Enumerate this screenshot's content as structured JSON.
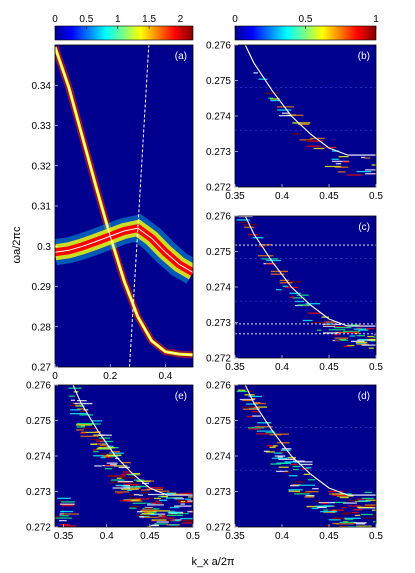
{
  "figure": {
    "ylabel": "ωa/2πc",
    "xlabel": "k_x a/2π"
  },
  "colorbars": [
    {
      "ticks": [
        "0",
        "0.5",
        "1",
        "1.5",
        "2"
      ],
      "range": [
        0,
        2.2
      ]
    },
    {
      "ticks": [
        "0",
        "0.5",
        "1"
      ],
      "range": [
        0,
        1
      ]
    }
  ],
  "chart_data": [
    {
      "panel": "(a)",
      "type": "heatmap",
      "xlim": [
        0,
        0.5
      ],
      "ylim": [
        0.27,
        0.35
      ],
      "xticks": [
        "0",
        "0.2",
        "0.4"
      ],
      "yticks": [
        "0.27",
        "0.28",
        "0.29",
        "0.3",
        "0.31",
        "0.32",
        "0.33",
        "0.34"
      ],
      "curves": {
        "upper_band": {
          "x": [
            0,
            0.05,
            0.1,
            0.15,
            0.2,
            0.25,
            0.3,
            0.35,
            0.4,
            0.45,
            0.5
          ],
          "y": [
            0.3495,
            0.3395,
            0.327,
            0.3145,
            0.3025,
            0.2915,
            0.2825,
            0.2765,
            0.2738,
            0.2732,
            0.273
          ]
        },
        "flat_band": {
          "x": [
            0,
            0.05,
            0.1,
            0.15,
            0.2,
            0.25,
            0.3,
            0.35,
            0.4,
            0.45,
            0.5
          ],
          "y": [
            0.2985,
            0.299,
            0.3,
            0.3012,
            0.3025,
            0.3038,
            0.3045,
            0.302,
            0.2985,
            0.2955,
            0.2935
          ]
        },
        "light_line": {
          "x": [
            0.27,
            0.34
          ],
          "y": [
            0.27,
            0.35
          ]
        },
        "shared_x": [
          0,
          0.05,
          0.1,
          0.15,
          0.2,
          0.25,
          0.3,
          0.35,
          0.4,
          0.45,
          0.5
        ]
      }
    },
    {
      "panel": "(b)",
      "type": "heatmap",
      "xlim": [
        0.35,
        0.5
      ],
      "ylim": [
        0.272,
        0.276
      ],
      "xticks": [
        "0.35",
        "0.4",
        "0.45",
        "0.5"
      ],
      "yticks": [
        "0.272",
        "0.273",
        "0.274",
        "0.275",
        "0.276"
      ],
      "curve": {
        "x": [
          0.35,
          0.37,
          0.39,
          0.41,
          0.43,
          0.45,
          0.47,
          0.49,
          0.5
        ],
        "y": [
          0.2766,
          0.2755,
          0.2747,
          0.274,
          0.2735,
          0.2731,
          0.2729,
          0.2729,
          0.2729
        ]
      }
    },
    {
      "panel": "(c)",
      "type": "heatmap",
      "xlim": [
        0.35,
        0.5
      ],
      "ylim": [
        0.272,
        0.276
      ],
      "xticks": [
        "0.35",
        "0.4",
        "0.45",
        "0.5"
      ],
      "yticks": [
        "0.272",
        "0.273",
        "0.274",
        "0.275",
        "0.276"
      ],
      "curve": {
        "x": [
          0.35,
          0.37,
          0.39,
          0.41,
          0.43,
          0.45,
          0.47,
          0.49,
          0.5
        ],
        "y": [
          0.2766,
          0.2755,
          0.2747,
          0.274,
          0.2735,
          0.2731,
          0.2729,
          0.2729,
          0.2729
        ]
      },
      "dotted_lines_y": [
        0.27518,
        0.27296,
        0.27268
      ]
    },
    {
      "panel": "(e)",
      "type": "heatmap",
      "xlim": [
        0.34,
        0.5
      ],
      "ylim": [
        0.272,
        0.276
      ],
      "xticks": [
        "0.35",
        "0.4",
        "0.45",
        "0.5"
      ],
      "yticks": [
        "0.272",
        "0.273",
        "0.274",
        "0.275",
        "0.276"
      ],
      "curve": {
        "x": [
          0.35,
          0.37,
          0.39,
          0.41,
          0.43,
          0.45,
          0.47,
          0.49,
          0.5
        ],
        "y": [
          0.2766,
          0.2755,
          0.2747,
          0.274,
          0.2735,
          0.2731,
          0.2729,
          0.2729,
          0.2729
        ]
      }
    },
    {
      "panel": "(d)",
      "type": "heatmap",
      "xlim": [
        0.35,
        0.5
      ],
      "ylim": [
        0.272,
        0.276
      ],
      "xticks": [
        "0.35",
        "0.4",
        "0.45",
        "0.5"
      ],
      "yticks": [
        "0.272",
        "0.273",
        "0.274",
        "0.275",
        "0.276"
      ],
      "curve": {
        "x": [
          0.35,
          0.37,
          0.39,
          0.41,
          0.43,
          0.45,
          0.47,
          0.49,
          0.5
        ],
        "y": [
          0.2766,
          0.2755,
          0.2747,
          0.274,
          0.2735,
          0.2731,
          0.2729,
          0.2729,
          0.2729
        ]
      }
    }
  ]
}
